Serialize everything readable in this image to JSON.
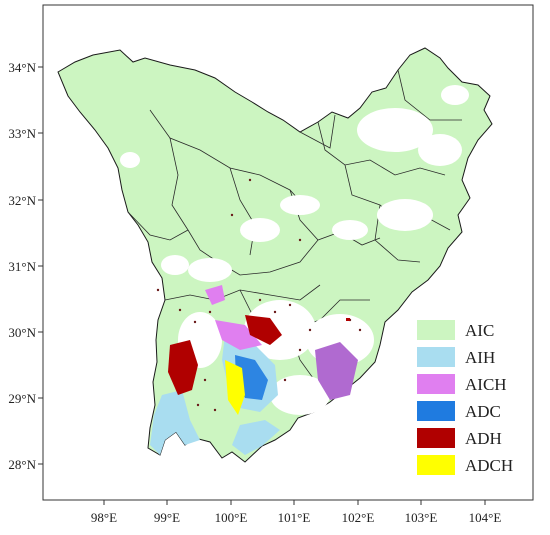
{
  "colors": {
    "AIC": "#ccf5c1",
    "AIH": "#a9ddf0",
    "AICH": "#e07ff0",
    "ADC": "#1f7be0",
    "ADH": "#b00000",
    "ADCH": "#ffff00",
    "boundary": "#1a1a1a",
    "frame": "#333333"
  },
  "axes": {
    "x_ticks": [
      "98°E",
      "99°E",
      "100°E",
      "101°E",
      "102°E",
      "103°E",
      "104°E"
    ],
    "y_ticks": [
      "34°N",
      "33°N",
      "32°N",
      "31°N",
      "30°N",
      "29°N",
      "28°N"
    ]
  },
  "legend": {
    "placement": "bottom-right",
    "items": [
      {
        "key": "AIC",
        "label": "AIC",
        "color": "#ccf5c1"
      },
      {
        "key": "AIH",
        "label": "AIH",
        "color": "#a9ddf0"
      },
      {
        "key": "AICH",
        "label": "AICH",
        "color": "#e07ff0"
      },
      {
        "key": "ADC",
        "label": "ADC",
        "color": "#1f7be0"
      },
      {
        "key": "ADH",
        "label": "ADH",
        "color": "#b00000"
      },
      {
        "key": "ADCH",
        "label": "ADCH",
        "color": "#ffff00"
      }
    ]
  }
}
